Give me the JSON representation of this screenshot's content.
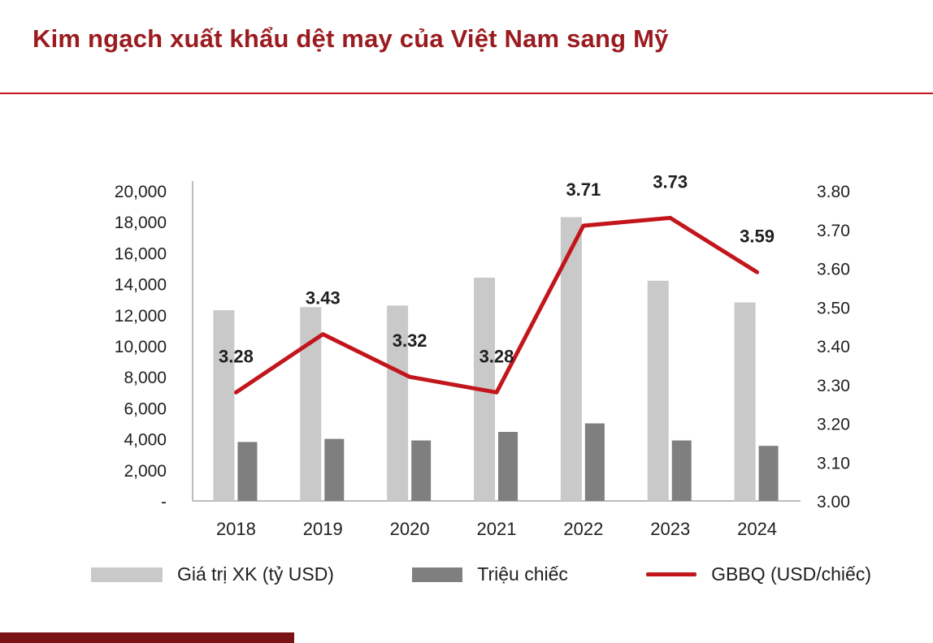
{
  "page": {
    "title": "Kim ngạch xuất khẩu dệt may của Việt Nam sang Mỹ",
    "title_color": "#9B1C20",
    "divider_color": "#C3161C",
    "footer_bar_color": "#7A1315"
  },
  "chart_data": {
    "type": "combo",
    "subtype": "bars-plus-line-dual-axis",
    "categories": [
      "2018",
      "2019",
      "2020",
      "2021",
      "2022",
      "2023",
      "2024"
    ],
    "series": [
      {
        "name": "Giá trị XK (tỷ USD)",
        "type": "bar",
        "axis": "left",
        "color": "#C9C9C9",
        "values": [
          12300,
          12500,
          12600,
          14400,
          18300,
          14200,
          12800
        ]
      },
      {
        "name": "Triệu chiếc",
        "type": "bar",
        "axis": "left",
        "color": "#7F7F7F",
        "values": [
          3800,
          4000,
          3900,
          4450,
          5000,
          3900,
          3550
        ]
      },
      {
        "name": "GBBQ (USD/chiếc)",
        "type": "line",
        "axis": "right",
        "color": "#C3161C",
        "values": [
          3.28,
          3.43,
          3.32,
          3.28,
          3.71,
          3.73,
          3.59
        ],
        "labels": [
          "3.28",
          "3.43",
          "3.32",
          "3.28",
          "3.71",
          "3.73",
          "3.59"
        ]
      }
    ],
    "left_axis": {
      "min": 0,
      "max": 20000,
      "step": 2000,
      "tick_labels": [
        "-",
        "2,000",
        "4,000",
        "6,000",
        "8,000",
        "10,000",
        "12,000",
        "14,000",
        "16,000",
        "18,000",
        "20,000"
      ]
    },
    "right_axis": {
      "min": 3.0,
      "max": 3.8,
      "step": 0.1,
      "tick_labels": [
        "3.00",
        "3.10",
        "3.20",
        "3.30",
        "3.40",
        "3.50",
        "3.60",
        "3.70",
        "3.80"
      ]
    },
    "grid": false,
    "legend_position": "bottom",
    "axis_line_color": "#A6A6A6"
  }
}
